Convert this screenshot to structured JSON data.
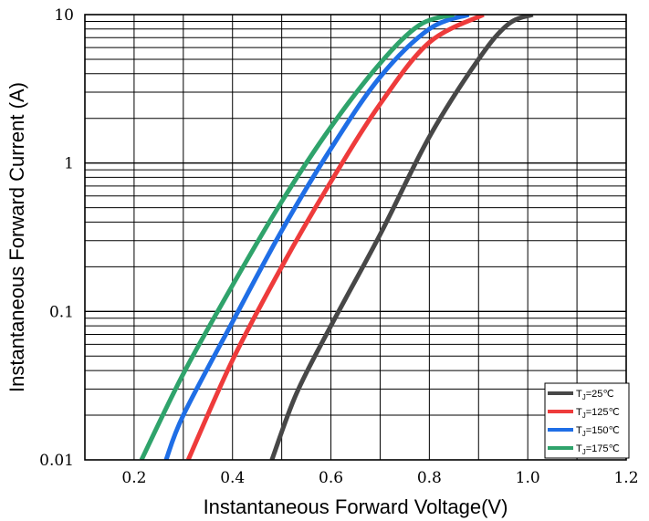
{
  "chart_data": {
    "type": "line",
    "title": "",
    "xlabel": "Instantaneous Forward Voltage(V)",
    "ylabel": "Instantaneous Forward Current (A)",
    "xlim": [
      0.1,
      1.2
    ],
    "ylim": [
      0.01,
      10
    ],
    "yscale": "log",
    "grid": true,
    "legend_position": "bottom-right",
    "x_ticks": [
      "0.2",
      "0.4",
      "0.6",
      "0.8",
      "1.0",
      "1.2"
    ],
    "y_ticks": [
      "0.01",
      "0.1",
      "1",
      "10"
    ],
    "series": [
      {
        "name": "TJ=25℃",
        "label_main": "T",
        "label_sub": "J",
        "label_rest": "=25℃",
        "color": "#474747",
        "points": [
          [
            0.48,
            0.01
          ],
          [
            0.53,
            0.028
          ],
          [
            0.6,
            0.08
          ],
          [
            0.7,
            0.33
          ],
          [
            0.8,
            1.5
          ],
          [
            0.9,
            5.0
          ],
          [
            0.96,
            8.6
          ],
          [
            1.01,
            10
          ]
        ]
      },
      {
        "name": "TJ=125℃",
        "label_main": "T",
        "label_sub": "J",
        "label_rest": "=125℃",
        "color": "#ee3b3b",
        "points": [
          [
            0.31,
            0.01
          ],
          [
            0.4,
            0.047
          ],
          [
            0.5,
            0.2
          ],
          [
            0.6,
            0.75
          ],
          [
            0.7,
            2.5
          ],
          [
            0.8,
            6.5
          ],
          [
            0.91,
            10
          ]
        ]
      },
      {
        "name": "TJ=150℃",
        "label_main": "T",
        "label_sub": "J",
        "label_rest": "=150℃",
        "color": "#1f6ee6",
        "points": [
          [
            0.265,
            0.01
          ],
          [
            0.3,
            0.02
          ],
          [
            0.4,
            0.085
          ],
          [
            0.5,
            0.35
          ],
          [
            0.6,
            1.25
          ],
          [
            0.7,
            3.8
          ],
          [
            0.8,
            8.0
          ],
          [
            0.88,
            10
          ]
        ]
      },
      {
        "name": "TJ=175℃",
        "label_main": "T",
        "label_sub": "J",
        "label_rest": "=175℃",
        "color": "#2fa36b",
        "points": [
          [
            0.215,
            0.01
          ],
          [
            0.3,
            0.038
          ],
          [
            0.4,
            0.15
          ],
          [
            0.5,
            0.55
          ],
          [
            0.6,
            1.75
          ],
          [
            0.7,
            4.7
          ],
          [
            0.78,
            8.5
          ],
          [
            0.85,
            10
          ]
        ]
      }
    ]
  }
}
